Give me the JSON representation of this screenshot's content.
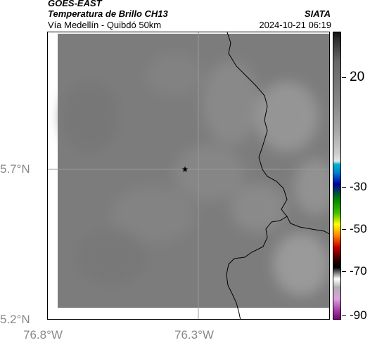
{
  "header": {
    "satellite": "GOES-EAST",
    "product": "Temperatura de Brillo CH13",
    "source": "SIATA",
    "route": "Vía Medellín - Quibdó 50km",
    "datetime": "2024-10-21 06:19"
  },
  "map": {
    "lat_labels": [
      "5.7°N",
      "5.2°N"
    ],
    "lon_labels": [
      "76.8°W",
      "76.3°W"
    ],
    "marker_icon": "star-icon",
    "base_color": "#7c7c7c"
  },
  "colorbar": {
    "ticks": [
      "20",
      "-30",
      "-50",
      "-70",
      "-90"
    ]
  }
}
